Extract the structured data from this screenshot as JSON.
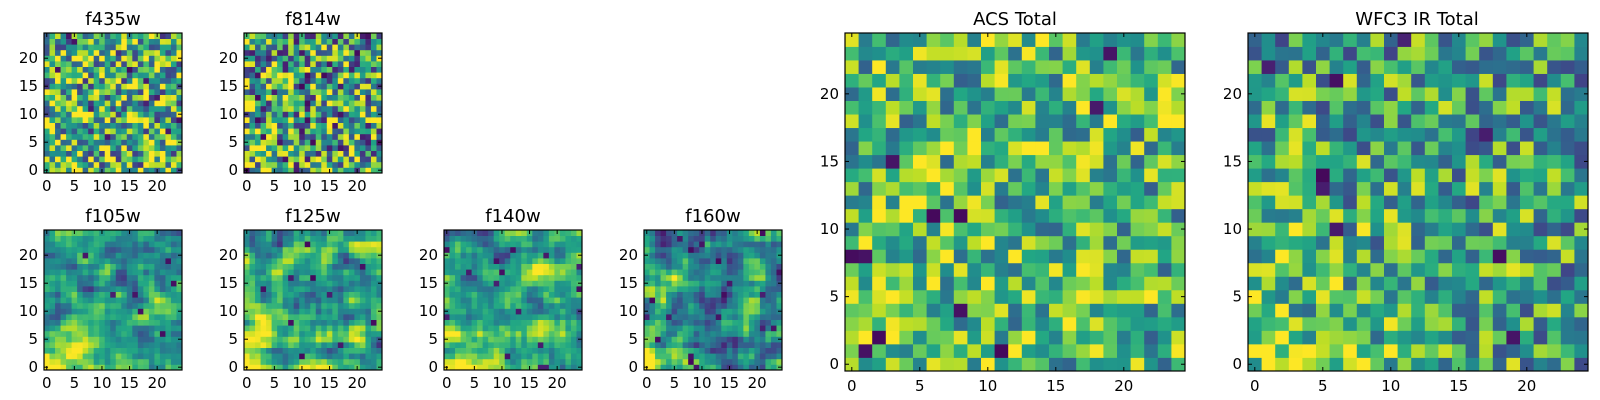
{
  "chart_data": [
    {
      "type": "heatmap",
      "title": "f435w",
      "grid_size": 25,
      "xticks": [
        0,
        5,
        10,
        15,
        20
      ],
      "yticks": [
        0,
        5,
        10,
        15,
        20
      ],
      "xlim": [
        -0.5,
        24.5
      ],
      "ylim": [
        -0.5,
        24.5
      ],
      "colormap": "viridis",
      "seed": 435,
      "smoothing": 0,
      "gradient": 0.05,
      "bias": 0.62,
      "spread": 0.48,
      "dark_fraction": 0.02
    },
    {
      "type": "heatmap",
      "title": "f814w",
      "grid_size": 25,
      "xticks": [
        0,
        5,
        10,
        15,
        20
      ],
      "yticks": [
        0,
        5,
        10,
        15,
        20
      ],
      "xlim": [
        -0.5,
        24.5
      ],
      "ylim": [
        -0.5,
        24.5
      ],
      "colormap": "viridis",
      "seed": 814,
      "smoothing": 0,
      "gradient": 0.12,
      "bias": 0.58,
      "spread": 0.5,
      "dark_fraction": 0.04
    },
    {
      "type": "heatmap",
      "title": "f105w",
      "grid_size": 25,
      "xticks": [
        0,
        5,
        10,
        15,
        20
      ],
      "yticks": [
        0,
        5,
        10,
        15,
        20
      ],
      "xlim": [
        -0.5,
        24.5
      ],
      "ylim": [
        -0.5,
        24.5
      ],
      "colormap": "viridis",
      "seed": 105,
      "smoothing": 1,
      "gradient": 0.35,
      "bias": 0.52,
      "spread": 0.42,
      "dark_fraction": 0.01
    },
    {
      "type": "heatmap",
      "title": "f125w",
      "grid_size": 25,
      "xticks": [
        0,
        5,
        10,
        15,
        20
      ],
      "yticks": [
        0,
        5,
        10,
        15,
        20
      ],
      "xlim": [
        -0.5,
        24.5
      ],
      "ylim": [
        -0.5,
        24.5
      ],
      "colormap": "viridis",
      "seed": 125,
      "smoothing": 1,
      "gradient": 0.35,
      "bias": 0.55,
      "spread": 0.45,
      "dark_fraction": 0.015
    },
    {
      "type": "heatmap",
      "title": "f140w",
      "grid_size": 25,
      "xticks": [
        0,
        5,
        10,
        15,
        20
      ],
      "yticks": [
        0,
        5,
        10,
        15,
        20
      ],
      "xlim": [
        -0.5,
        24.5
      ],
      "ylim": [
        -0.5,
        24.5
      ],
      "colormap": "viridis",
      "seed": 140,
      "smoothing": 1,
      "gradient": 0.3,
      "bias": 0.6,
      "spread": 0.45,
      "dark_fraction": 0.02
    },
    {
      "type": "heatmap",
      "title": "f160w",
      "grid_size": 25,
      "xticks": [
        0,
        5,
        10,
        15,
        20
      ],
      "yticks": [
        0,
        5,
        10,
        15,
        20
      ],
      "xlim": [
        -0.5,
        24.5
      ],
      "ylim": [
        -0.5,
        24.5
      ],
      "colormap": "viridis",
      "seed": 160,
      "smoothing": 1,
      "gradient": 0.3,
      "bias": 0.5,
      "spread": 0.48,
      "dark_fraction": 0.02
    },
    {
      "type": "heatmap",
      "title": "ACS Total",
      "grid_size": 25,
      "xticks": [
        0,
        5,
        10,
        15,
        20
      ],
      "yticks": [
        0,
        5,
        10,
        15,
        20
      ],
      "xlim": [
        -0.5,
        24.5
      ],
      "ylim": [
        -0.5,
        24.5
      ],
      "colormap": "viridis",
      "seed": 1001,
      "smoothing": 0,
      "gradient": 0.1,
      "bias": 0.66,
      "spread": 0.36,
      "dark_fraction": 0.015
    },
    {
      "type": "heatmap",
      "title": "WFC3 IR Total",
      "grid_size": 25,
      "xticks": [
        0,
        5,
        10,
        15,
        20
      ],
      "yticks": [
        0,
        5,
        10,
        15,
        20
      ],
      "xlim": [
        -0.5,
        24.5
      ],
      "ylim": [
        -0.5,
        24.5
      ],
      "colormap": "viridis",
      "seed": 2002,
      "smoothing": 0,
      "gradient": 0.2,
      "bias": 0.58,
      "spread": 0.38,
      "dark_fraction": 0.015
    }
  ]
}
